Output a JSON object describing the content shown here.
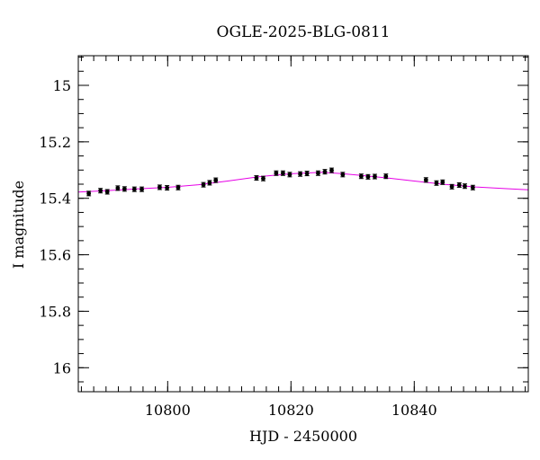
{
  "chart_data": {
    "type": "scatter",
    "title": "OGLE-2025-BLG-0811",
    "xlabel": "HJD - 2450000",
    "ylabel": "I magnitude",
    "xlim": [
      10785.5,
      10858.5
    ],
    "ylim": [
      16.085,
      14.895
    ],
    "y_inverted": true,
    "x_ticks": [
      10800,
      10820,
      10840
    ],
    "x_tick_labels": [
      "10800",
      "10820",
      "10840"
    ],
    "y_ticks": [
      15,
      15.2,
      15.4,
      15.6,
      15.8,
      16
    ],
    "y_tick_labels": [
      "15",
      "15.2",
      "15.4",
      "15.6",
      "15.8",
      "16"
    ],
    "grid": false,
    "legend": "none",
    "series": [
      {
        "kind": "points_with_errorbars",
        "color": "#000000",
        "points": [
          {
            "x": 10787.2,
            "y": 15.383,
            "err": 0.008
          },
          {
            "x": 10789.1,
            "y": 15.373,
            "err": 0.008
          },
          {
            "x": 10790.2,
            "y": 15.377,
            "err": 0.008
          },
          {
            "x": 10791.9,
            "y": 15.364,
            "err": 0.008
          },
          {
            "x": 10793.0,
            "y": 15.367,
            "err": 0.008
          },
          {
            "x": 10794.6,
            "y": 15.368,
            "err": 0.008
          },
          {
            "x": 10795.8,
            "y": 15.368,
            "err": 0.008
          },
          {
            "x": 10798.7,
            "y": 15.361,
            "err": 0.008
          },
          {
            "x": 10799.9,
            "y": 15.363,
            "err": 0.008
          },
          {
            "x": 10801.7,
            "y": 15.362,
            "err": 0.008
          },
          {
            "x": 10805.8,
            "y": 15.352,
            "err": 0.008
          },
          {
            "x": 10806.8,
            "y": 15.345,
            "err": 0.008
          },
          {
            "x": 10807.8,
            "y": 15.336,
            "err": 0.008
          },
          {
            "x": 10814.4,
            "y": 15.328,
            "err": 0.008
          },
          {
            "x": 10815.5,
            "y": 15.33,
            "err": 0.008
          },
          {
            "x": 10817.6,
            "y": 15.311,
            "err": 0.008
          },
          {
            "x": 10818.7,
            "y": 15.311,
            "err": 0.008
          },
          {
            "x": 10819.8,
            "y": 15.316,
            "err": 0.008
          },
          {
            "x": 10821.5,
            "y": 15.314,
            "err": 0.008
          },
          {
            "x": 10822.6,
            "y": 15.312,
            "err": 0.008
          },
          {
            "x": 10824.4,
            "y": 15.311,
            "err": 0.008
          },
          {
            "x": 10825.5,
            "y": 15.306,
            "err": 0.008
          },
          {
            "x": 10826.6,
            "y": 15.301,
            "err": 0.008
          },
          {
            "x": 10828.4,
            "y": 15.316,
            "err": 0.008
          },
          {
            "x": 10831.4,
            "y": 15.322,
            "err": 0.008
          },
          {
            "x": 10832.5,
            "y": 15.324,
            "err": 0.008
          },
          {
            "x": 10833.6,
            "y": 15.323,
            "err": 0.008
          },
          {
            "x": 10835.4,
            "y": 15.322,
            "err": 0.008
          },
          {
            "x": 10841.9,
            "y": 15.335,
            "err": 0.008
          },
          {
            "x": 10843.6,
            "y": 15.346,
            "err": 0.008
          },
          {
            "x": 10844.6,
            "y": 15.343,
            "err": 0.008
          },
          {
            "x": 10846.1,
            "y": 15.359,
            "err": 0.008
          },
          {
            "x": 10847.3,
            "y": 15.353,
            "err": 0.008
          },
          {
            "x": 10848.2,
            "y": 15.357,
            "err": 0.008
          },
          {
            "x": 10849.5,
            "y": 15.362,
            "err": 0.008
          }
        ]
      },
      {
        "kind": "model_curve",
        "color": "#e600e6",
        "x": [
          10785.5,
          10790,
          10795,
          10800,
          10805,
          10810,
          10815,
          10820,
          10825,
          10828,
          10832,
          10836,
          10840,
          10845,
          10850,
          10855,
          10858.5
        ],
        "y": [
          15.378,
          15.373,
          15.367,
          15.361,
          15.352,
          15.338,
          15.323,
          15.313,
          15.308,
          15.312,
          15.32,
          15.329,
          15.339,
          15.351,
          15.36,
          15.366,
          15.37
        ]
      }
    ]
  }
}
